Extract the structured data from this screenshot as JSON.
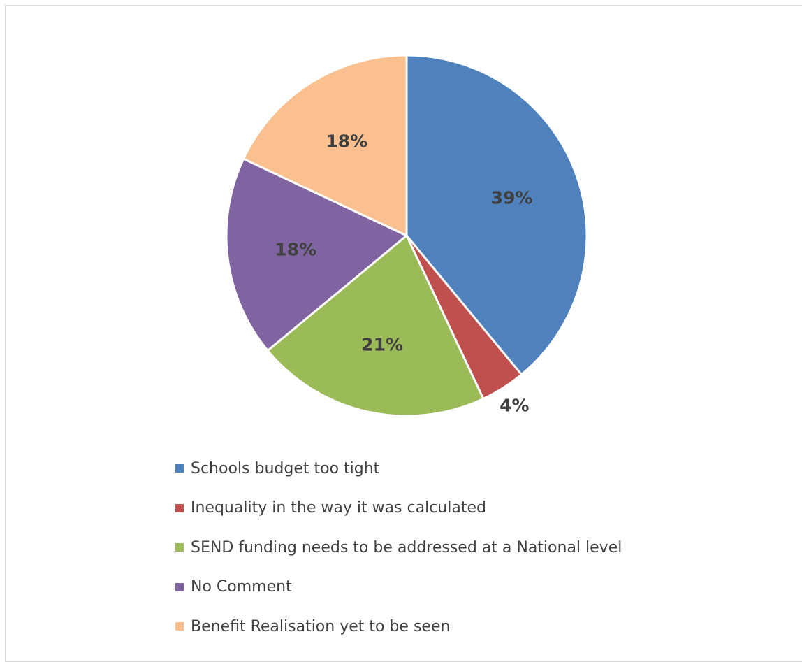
{
  "chart_data": {
    "type": "pie",
    "title": "",
    "slices": [
      {
        "name": "Schools budget too tight",
        "value": 39,
        "label": "39%",
        "color": "#4F81BD"
      },
      {
        "name": "Inequality in the way it was calculated",
        "value": 4,
        "label": "4%",
        "color": "#C0504D"
      },
      {
        "name": "SEND funding needs to be addressed at a National level",
        "value": 21,
        "label": "21%",
        "color": "#9BBB59"
      },
      {
        "name": "No Comment",
        "value": 18,
        "label": "18%",
        "color": "#8064A2"
      },
      {
        "name": "Benefit Realisation yet to be seen",
        "value": 18,
        "label": "18%",
        "color": "#FAC090"
      }
    ],
    "legend_position": "bottom"
  }
}
